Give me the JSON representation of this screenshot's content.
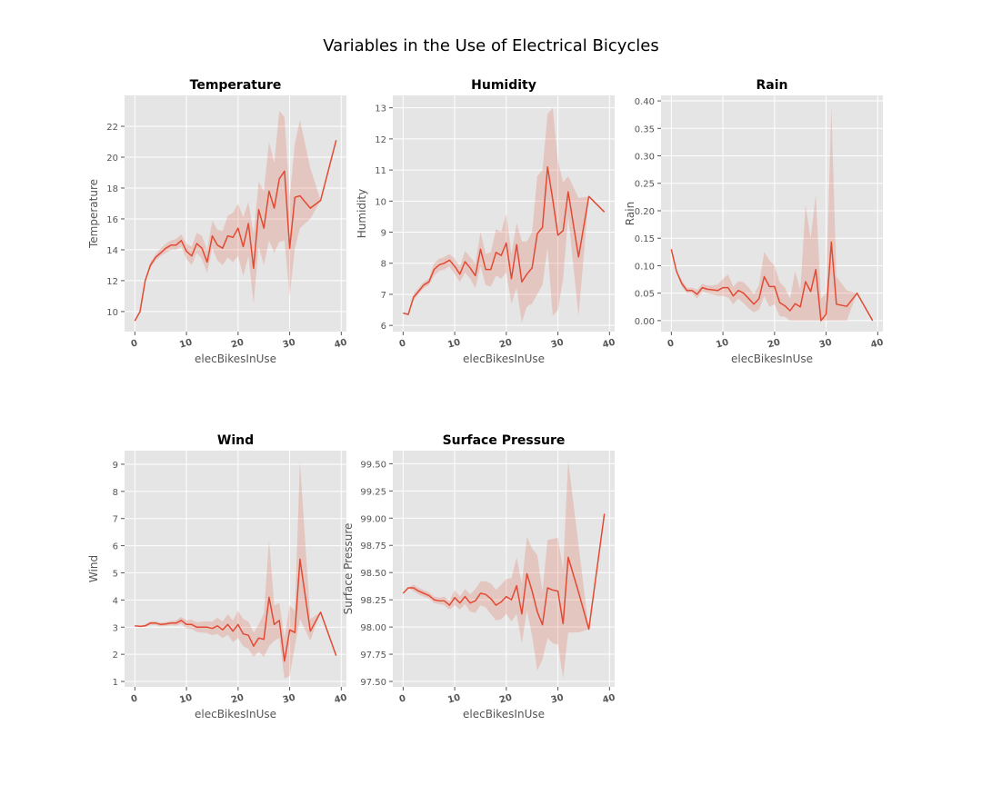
{
  "figure_title": "Variables in the Use of Electrical Bicycles",
  "style": {
    "line_color": "#E24A33",
    "band_color": "#E24A33",
    "panel_bg": "#E5E5E5",
    "grid_color": "#FFFFFF"
  },
  "chart_data": [
    {
      "type": "line",
      "title": "Temperature",
      "xlabel": "elecBikesInUse",
      "ylabel": "Temperature",
      "xlim": [
        -2,
        41
      ],
      "ylim": [
        8.7,
        24
      ],
      "xticks": [
        0,
        10,
        20,
        30,
        40
      ],
      "yticks": [
        10,
        12,
        14,
        16,
        18,
        20,
        22
      ],
      "ytick_labels": [
        "10",
        "12",
        "14",
        "16",
        "18",
        "20",
        "22"
      ],
      "grid": true,
      "x": [
        0,
        1,
        2,
        3,
        4,
        5,
        6,
        7,
        8,
        9,
        10,
        11,
        12,
        13,
        14,
        15,
        16,
        17,
        18,
        19,
        20,
        21,
        22,
        23,
        24,
        25,
        26,
        27,
        28,
        29,
        30,
        31,
        32,
        34,
        36,
        39
      ],
      "y": [
        9.4,
        10.0,
        12.0,
        13.0,
        13.5,
        13.8,
        14.1,
        14.3,
        14.3,
        14.6,
        13.9,
        13.6,
        14.4,
        14.1,
        13.2,
        14.9,
        14.3,
        14.1,
        14.9,
        14.8,
        15.4,
        14.2,
        15.7,
        12.8,
        16.6,
        15.4,
        17.8,
        16.7,
        18.6,
        19.1,
        14.1,
        17.4,
        17.5,
        16.7,
        17.2,
        21.1
      ],
      "ci_low": [
        9.4,
        10.0,
        12.0,
        12.8,
        13.3,
        13.6,
        13.8,
        14.0,
        14.0,
        14.2,
        13.4,
        13.0,
        13.8,
        13.4,
        12.5,
        14.1,
        13.3,
        13.0,
        13.5,
        13.2,
        13.6,
        12.3,
        13.6,
        10.5,
        14.2,
        13.0,
        14.6,
        13.8,
        14.5,
        14.6,
        11.0,
        14.1,
        15.4,
        16.0,
        17.2,
        21.1
      ],
      "ci_high": [
        9.4,
        10.0,
        12.0,
        13.2,
        13.7,
        14.1,
        14.4,
        14.6,
        14.7,
        15.0,
        14.4,
        14.2,
        15.1,
        14.9,
        14.0,
        15.9,
        15.3,
        15.2,
        16.2,
        16.4,
        17.0,
        16.1,
        17.1,
        15.0,
        18.4,
        17.8,
        21.0,
        19.6,
        23.0,
        22.6,
        17.4,
        20.9,
        22.4,
        19.3,
        17.2,
        21.1
      ]
    },
    {
      "type": "line",
      "title": "Humidity",
      "xlabel": "elecBikesInUse",
      "ylabel": "Humidity",
      "xlim": [
        -2,
        41
      ],
      "ylim": [
        5.8,
        13.4
      ],
      "xticks": [
        0,
        10,
        20,
        30,
        40
      ],
      "yticks": [
        6,
        7,
        8,
        9,
        10,
        11,
        12,
        13
      ],
      "ytick_labels": [
        "6",
        "7",
        "8",
        "9",
        "10",
        "11",
        "12",
        "13"
      ],
      "grid": true,
      "x": [
        0,
        1,
        2,
        3,
        4,
        5,
        6,
        7,
        8,
        9,
        10,
        11,
        12,
        13,
        14,
        15,
        16,
        17,
        18,
        19,
        20,
        21,
        22,
        23,
        24,
        25,
        26,
        27,
        28,
        29,
        30,
        31,
        32,
        34,
        36,
        39
      ],
      "y": [
        6.4,
        6.35,
        6.9,
        7.1,
        7.3,
        7.4,
        7.8,
        7.95,
        8.0,
        8.1,
        7.9,
        7.65,
        8.05,
        7.85,
        7.6,
        8.45,
        7.8,
        7.8,
        8.35,
        8.25,
        8.65,
        7.5,
        8.6,
        7.4,
        7.65,
        7.85,
        8.95,
        9.15,
        11.1,
        10.05,
        8.9,
        9.05,
        10.3,
        8.2,
        10.15,
        9.65
      ],
      "ci_low": [
        6.4,
        6.35,
        6.8,
        7.0,
        7.2,
        7.3,
        7.6,
        7.75,
        7.8,
        7.9,
        7.65,
        7.4,
        7.7,
        7.5,
        7.2,
        7.9,
        7.3,
        7.25,
        7.6,
        7.5,
        7.7,
        6.7,
        7.2,
        6.1,
        6.6,
        6.7,
        7.0,
        7.3,
        8.5,
        6.3,
        6.5,
        7.5,
        9.5,
        6.3,
        10.15,
        9.65
      ],
      "ci_high": [
        6.4,
        6.35,
        7.0,
        7.2,
        7.4,
        7.5,
        8.0,
        8.15,
        8.2,
        8.3,
        8.15,
        7.9,
        8.4,
        8.2,
        8.0,
        9.0,
        8.3,
        8.35,
        9.1,
        9.0,
        9.6,
        8.3,
        9.3,
        8.7,
        8.7,
        9.0,
        10.8,
        11.0,
        12.8,
        13.0,
        11.3,
        10.6,
        10.8,
        10.1,
        10.15,
        9.65
      ]
    },
    {
      "type": "line",
      "title": "Rain",
      "xlabel": "elecBikesInUse",
      "ylabel": "Rain",
      "xlim": [
        -2,
        41
      ],
      "ylim": [
        -0.02,
        0.41
      ],
      "xticks": [
        0,
        10,
        20,
        30,
        40
      ],
      "yticks": [
        0.0,
        0.05,
        0.1,
        0.15,
        0.2,
        0.25,
        0.3,
        0.35,
        0.4
      ],
      "ytick_labels": [
        "0.00",
        "0.05",
        "0.10",
        "0.15",
        "0.20",
        "0.25",
        "0.30",
        "0.35",
        "0.40"
      ],
      "grid": true,
      "x": [
        0,
        1,
        2,
        3,
        4,
        5,
        6,
        7,
        8,
        9,
        10,
        11,
        12,
        13,
        14,
        15,
        16,
        17,
        18,
        19,
        20,
        21,
        22,
        23,
        24,
        25,
        26,
        27,
        28,
        29,
        30,
        31,
        32,
        34,
        36,
        39
      ],
      "y": [
        0.13,
        0.09,
        0.068,
        0.055,
        0.055,
        0.048,
        0.06,
        0.057,
        0.056,
        0.055,
        0.06,
        0.06,
        0.045,
        0.055,
        0.05,
        0.04,
        0.03,
        0.04,
        0.08,
        0.062,
        0.062,
        0.033,
        0.027,
        0.018,
        0.031,
        0.025,
        0.071,
        0.053,
        0.093,
        0.0,
        0.012,
        0.143,
        0.03,
        0.026,
        0.05,
        0.0
      ],
      "ci_low": [
        0.13,
        0.09,
        0.062,
        0.05,
        0.05,
        0.04,
        0.053,
        0.05,
        0.048,
        0.045,
        0.045,
        0.042,
        0.03,
        0.04,
        0.032,
        0.022,
        0.015,
        0.02,
        0.045,
        0.025,
        0.03,
        0.008,
        0.007,
        0.0,
        0.0,
        0.0,
        0.0,
        0.0,
        0.0,
        0.0,
        0.0,
        0.0,
        0.0,
        0.0,
        0.05,
        0.0
      ],
      "ci_high": [
        0.13,
        0.09,
        0.074,
        0.06,
        0.06,
        0.056,
        0.067,
        0.064,
        0.064,
        0.066,
        0.076,
        0.084,
        0.062,
        0.072,
        0.07,
        0.06,
        0.048,
        0.065,
        0.125,
        0.11,
        0.1,
        0.07,
        0.06,
        0.04,
        0.09,
        0.055,
        0.21,
        0.15,
        0.23,
        0.04,
        0.05,
        0.39,
        0.08,
        0.055,
        0.05,
        0.0
      ]
    },
    {
      "type": "line",
      "title": "Wind",
      "xlabel": "elecBikesInUse",
      "ylabel": "Wind",
      "xlim": [
        -2,
        41
      ],
      "ylim": [
        0.8,
        9.5
      ],
      "xticks": [
        0,
        10,
        20,
        30,
        40
      ],
      "yticks": [
        1,
        2,
        3,
        4,
        5,
        6,
        7,
        8,
        9
      ],
      "ytick_labels": [
        "1",
        "2",
        "3",
        "4",
        "5",
        "6",
        "7",
        "8",
        "9"
      ],
      "grid": true,
      "x": [
        0,
        1,
        2,
        3,
        4,
        5,
        6,
        7,
        8,
        9,
        10,
        11,
        12,
        13,
        14,
        15,
        16,
        17,
        18,
        19,
        20,
        21,
        22,
        23,
        24,
        25,
        26,
        27,
        28,
        29,
        30,
        31,
        32,
        34,
        36,
        39
      ],
      "y": [
        3.05,
        3.03,
        3.05,
        3.15,
        3.15,
        3.1,
        3.12,
        3.15,
        3.15,
        3.25,
        3.1,
        3.1,
        3.0,
        3.0,
        3.0,
        2.95,
        3.05,
        2.9,
        3.1,
        2.85,
        3.1,
        2.75,
        2.7,
        2.3,
        2.6,
        2.55,
        4.1,
        3.1,
        3.25,
        1.75,
        2.9,
        2.8,
        5.5,
        2.85,
        3.55,
        1.95
      ],
      "ci_low": [
        3.05,
        3.03,
        3.0,
        3.08,
        3.08,
        3.03,
        3.05,
        3.07,
        3.05,
        3.12,
        2.95,
        2.93,
        2.82,
        2.8,
        2.78,
        2.7,
        2.75,
        2.6,
        2.72,
        2.45,
        2.6,
        2.3,
        2.2,
        1.9,
        2.1,
        1.9,
        2.3,
        2.5,
        2.6,
        1.1,
        1.2,
        2.3,
        3.3,
        2.5,
        3.55,
        1.95
      ],
      "ci_high": [
        3.05,
        3.03,
        3.1,
        3.22,
        3.22,
        3.17,
        3.19,
        3.23,
        3.25,
        3.38,
        3.25,
        3.27,
        3.18,
        3.2,
        3.22,
        3.2,
        3.35,
        3.2,
        3.48,
        3.25,
        3.6,
        3.3,
        3.2,
        2.8,
        3.1,
        3.5,
        6.2,
        3.8,
        3.9,
        2.6,
        3.8,
        3.6,
        9.1,
        3.3,
        3.55,
        1.95
      ]
    },
    {
      "type": "line",
      "title": "Surface Pressure",
      "xlabel": "elecBikesInUse",
      "ylabel": "Surface Pressure",
      "xlim": [
        -2,
        41
      ],
      "ylim": [
        97.45,
        99.62
      ],
      "xticks": [
        0,
        10,
        20,
        30,
        40
      ],
      "yticks": [
        97.5,
        97.75,
        98.0,
        98.25,
        98.5,
        98.75,
        99.0,
        99.25,
        99.5
      ],
      "ytick_labels": [
        "97.50",
        "97.75",
        "98.00",
        "98.25",
        "98.50",
        "98.75",
        "99.00",
        "99.25",
        "99.50"
      ],
      "grid": true,
      "x": [
        0,
        1,
        2,
        3,
        4,
        5,
        6,
        7,
        8,
        9,
        10,
        11,
        12,
        13,
        14,
        15,
        16,
        17,
        18,
        19,
        20,
        21,
        22,
        23,
        24,
        25,
        26,
        27,
        28,
        29,
        30,
        31,
        32,
        34,
        36,
        39
      ],
      "y": [
        98.31,
        98.36,
        98.36,
        98.33,
        98.31,
        98.29,
        98.25,
        98.24,
        98.24,
        98.2,
        98.27,
        98.22,
        98.28,
        98.22,
        98.24,
        98.31,
        98.3,
        98.26,
        98.2,
        98.23,
        98.28,
        98.25,
        98.38,
        98.12,
        98.49,
        98.33,
        98.14,
        98.02,
        98.36,
        98.34,
        98.33,
        98.03,
        98.64,
        98.32,
        97.98,
        99.04
      ],
      "ci_low": [
        98.31,
        98.36,
        98.33,
        98.3,
        98.28,
        98.26,
        98.22,
        98.21,
        98.2,
        98.16,
        98.2,
        98.16,
        98.21,
        98.14,
        98.13,
        98.2,
        98.18,
        98.12,
        98.06,
        98.07,
        98.12,
        98.05,
        98.12,
        97.85,
        98.15,
        97.92,
        97.6,
        97.7,
        97.9,
        97.85,
        97.84,
        97.53,
        97.95,
        97.95,
        97.98,
        99.04
      ],
      "ci_high": [
        98.31,
        98.36,
        98.39,
        98.36,
        98.34,
        98.32,
        98.28,
        98.27,
        98.28,
        98.24,
        98.34,
        98.28,
        98.35,
        98.3,
        98.35,
        98.42,
        98.42,
        98.4,
        98.34,
        98.39,
        98.44,
        98.45,
        98.64,
        98.4,
        98.83,
        98.72,
        98.66,
        98.33,
        98.8,
        98.81,
        98.82,
        98.53,
        99.53,
        98.75,
        97.98,
        99.04
      ]
    }
  ]
}
